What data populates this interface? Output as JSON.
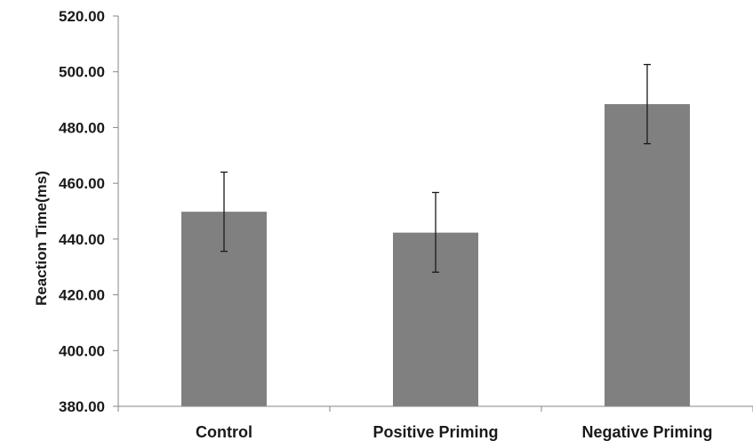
{
  "chart_data": {
    "type": "bar",
    "title": "",
    "xlabel": "",
    "ylabel": "Reaction Time(ms)",
    "categories": [
      "Control",
      "Positive Priming",
      "Negative Priming"
    ],
    "values": [
      449.8,
      442.3,
      488.4
    ],
    "error_low": [
      435.6,
      428.1,
      474.2
    ],
    "error_high": [
      464.0,
      456.7,
      502.6
    ],
    "ylim": [
      380,
      520
    ],
    "yticks": [
      380,
      400,
      420,
      440,
      460,
      480,
      500,
      520
    ],
    "ytick_labels": [
      "380.00",
      "400.00",
      "420.00",
      "440.00",
      "460.00",
      "480.00",
      "500.00",
      "520.00"
    ],
    "grid": false,
    "legend": "none",
    "bar_color": "#808080",
    "axis_color": "#868686",
    "error_bar_color": "#1a1a1a"
  }
}
